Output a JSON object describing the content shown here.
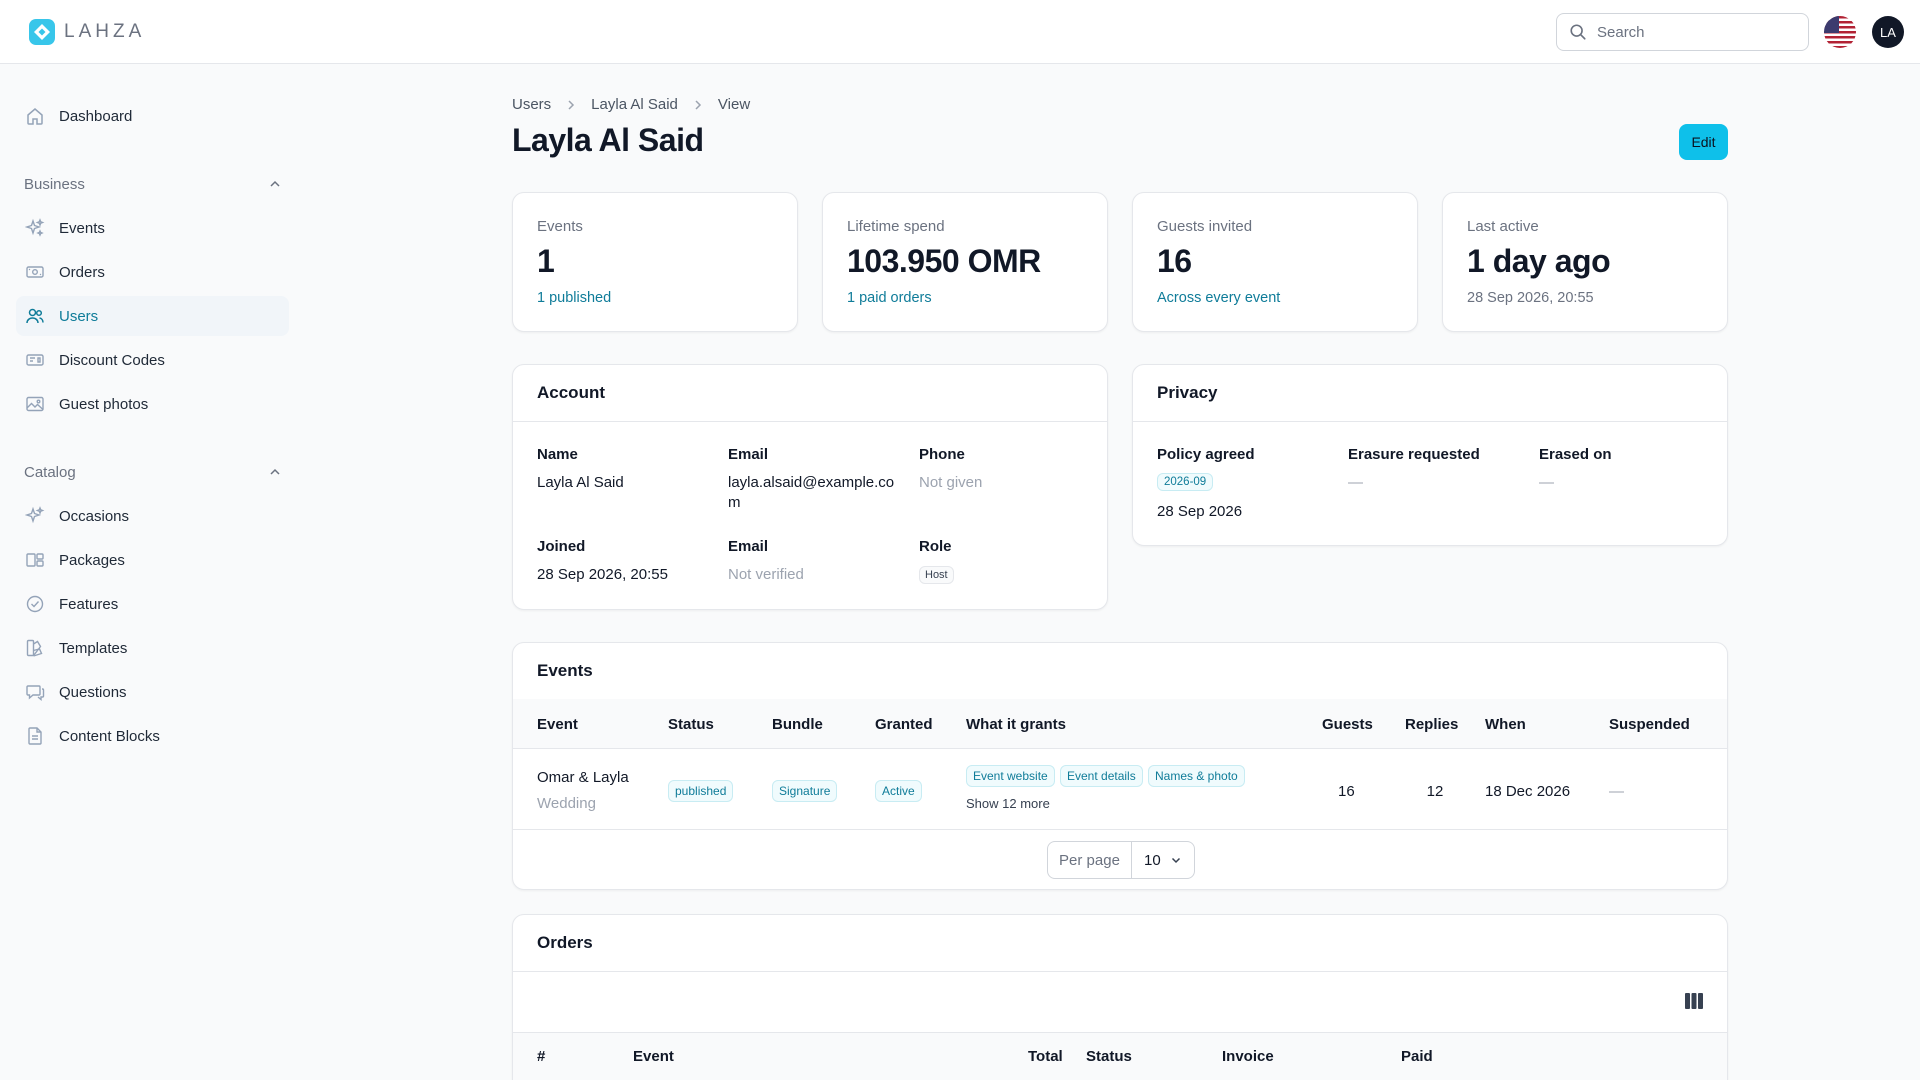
{
  "brand": {
    "name": "LAHZA",
    "accent": "#0ec0ea",
    "link": "#0f7c99"
  },
  "header": {
    "search_placeholder": "Search",
    "avatar_initials": "LA",
    "language_flag": "us-flag-icon"
  },
  "sidebar": {
    "dashboard": "Dashboard",
    "groups": [
      {
        "label": "Business",
        "items": [
          "Events",
          "Orders",
          "Users",
          "Discount Codes",
          "Guest photos"
        ]
      },
      {
        "label": "Catalog",
        "items": [
          "Occasions",
          "Packages",
          "Features",
          "Templates",
          "Questions",
          "Content Blocks"
        ]
      }
    ],
    "active": "Users"
  },
  "breadcrumb": [
    "Users",
    "Layla Al Said",
    "View"
  ],
  "page": {
    "title": "Layla Al Said",
    "edit_label": "Edit"
  },
  "stats": [
    {
      "label": "Events",
      "value": "1",
      "sub": "1 published"
    },
    {
      "label": "Lifetime spend",
      "value": "103.950 OMR",
      "sub": "1 paid orders"
    },
    {
      "label": "Guests invited",
      "value": "16",
      "sub": "Across every event"
    },
    {
      "label": "Last active",
      "value": "1 day ago",
      "sub": "28 Sep 2026, 20:55"
    }
  ],
  "account": {
    "title": "Account",
    "name_label": "Name",
    "name": "Layla Al Said",
    "email_label": "Email",
    "email_line1": "layla.alsaid@example.co",
    "email_line2": "m",
    "phone_label": "Phone",
    "phone": "Not given",
    "joined_label": "Joined",
    "joined": "28 Sep 2026, 20:55",
    "email_status_label": "Email",
    "email_status": "Not verified",
    "role_label": "Role",
    "role": "Host"
  },
  "privacy": {
    "title": "Privacy",
    "policy_label": "Policy agreed",
    "policy_version": "2026-09",
    "policy_date": "28 Sep 2026",
    "erasure_label": "Erasure requested",
    "erasure_value": "—",
    "erased_label": "Erased on",
    "erased_value": "—"
  },
  "events": {
    "title": "Events",
    "columns": [
      "Event",
      "Status",
      "Bundle",
      "Granted",
      "What it grants",
      "Guests",
      "Replies",
      "When",
      "Suspended"
    ],
    "rows": [
      {
        "event_name": "Omar & Layla",
        "event_type": "Wedding",
        "status": "published",
        "bundle": "Signature",
        "granted": "Active",
        "grants": [
          "Event website",
          "Event details",
          "Names & photo"
        ],
        "show_more": "Show 12 more",
        "guests": "16",
        "replies": "12",
        "when": "18 Dec 2026",
        "suspended": "—"
      }
    ],
    "per_page_label": "Per page",
    "per_page_value": "10"
  },
  "orders": {
    "title": "Orders",
    "columns": [
      "#",
      "Event",
      "Total",
      "Status",
      "Invoice",
      "Paid"
    ]
  }
}
